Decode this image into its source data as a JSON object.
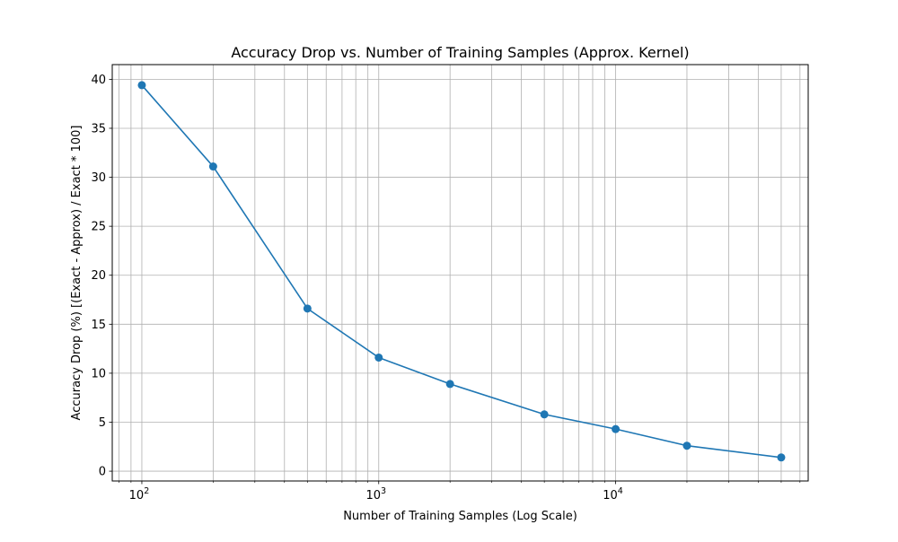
{
  "chart_data": {
    "type": "line",
    "title": "Accuracy Drop vs. Number of Training Samples (Approx. Kernel)",
    "xlabel": "Number of Training Samples (Log Scale)",
    "ylabel": "Accuracy Drop (%) [(Exact - Approx) / Exact * 100]",
    "x_scale": "log",
    "xlim": [
      75,
      65000
    ],
    "ylim": [
      -1.0,
      41.5
    ],
    "grid": true,
    "grid_minor": true,
    "marker": "circle",
    "x": [
      100,
      200,
      500,
      1000,
      2000,
      5000,
      10000,
      20000,
      50000
    ],
    "series": [
      {
        "values": [
          39.4,
          31.1,
          16.6,
          11.6,
          8.9,
          5.8,
          4.3,
          2.6,
          1.4
        ],
        "color": "#1f77b4"
      }
    ],
    "x_ticks": [
      {
        "value": 100,
        "base": "10",
        "exp": "2"
      },
      {
        "value": 1000,
        "base": "10",
        "exp": "3"
      },
      {
        "value": 10000,
        "base": "10",
        "exp": "4"
      }
    ],
    "y_ticks": [
      {
        "value": 0,
        "label": "0"
      },
      {
        "value": 5,
        "label": "5"
      },
      {
        "value": 10,
        "label": "10"
      },
      {
        "value": 15,
        "label": "15"
      },
      {
        "value": 20,
        "label": "20"
      },
      {
        "value": 25,
        "label": "25"
      },
      {
        "value": 30,
        "label": "30"
      },
      {
        "value": 35,
        "label": "35"
      },
      {
        "value": 40,
        "label": "40"
      }
    ]
  }
}
